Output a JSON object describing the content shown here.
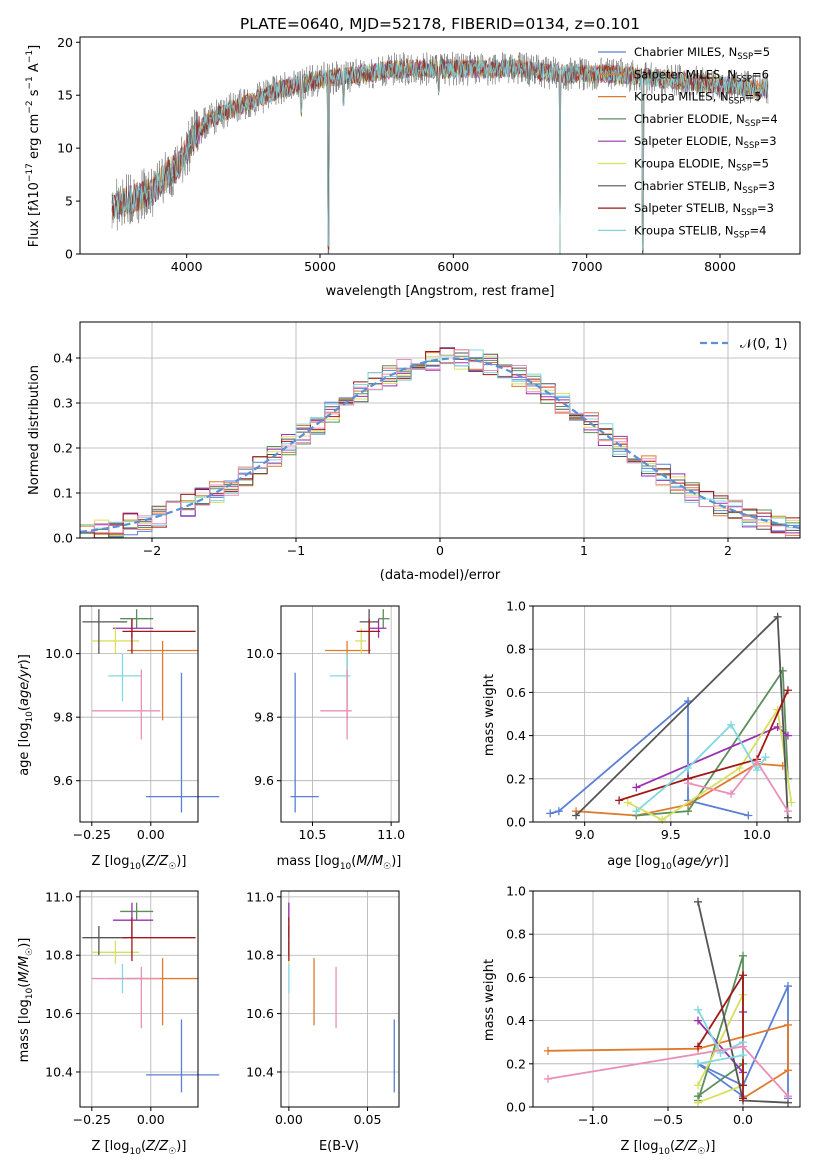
{
  "colors": {
    "grid": "#b0b0b0",
    "palette": [
      "#5b7fd6",
      "#e07a2e",
      "#b8b8b8",
      "#5a8f5a",
      "#9b30b0",
      "#d8e060",
      "#555555",
      "#a01818",
      "#80d8e0",
      "#e890b8"
    ]
  },
  "chart_data": [
    {
      "id": "spectrum",
      "type": "line",
      "title": "PLATE=0640, MJD=52178, FIBERID=0134, z=0.101",
      "xlabel": "wavelength [Angstrom, rest frame]",
      "ylabel": "Flux [fλ10⁻¹⁷ erg cm⁻² s⁻¹ A⁻¹]",
      "xlim": [
        3200,
        8600
      ],
      "ylim": [
        0,
        20.5
      ],
      "xticks": [
        4000,
        5000,
        6000,
        7000,
        8000
      ],
      "yticks": [
        0,
        5,
        10,
        15,
        20
      ],
      "legend": "top-right",
      "series": [
        {
          "name": "Chabrier MILES, N_SSP=5",
          "label_main": "Chabrier MILES, N",
          "label_sub": "SSP",
          "label_tail": "=5",
          "color": "#5b7fd6"
        },
        {
          "name": "Salpeter MILES, N_SSP=6",
          "label_main": "Salpeter MILES, N",
          "label_sub": "SSP",
          "label_tail": "=6",
          "color": "#e07a2e"
        },
        {
          "name": "Kroupa MILES, N_SSP=5",
          "label_main": "Kroupa MILES, N",
          "label_sub": "SSP",
          "label_tail": "=5",
          "color": "#e07a2e"
        },
        {
          "name": "Chabrier ELODIE, N_SSP=4",
          "label_main": "Chabrier ELODIE, N",
          "label_sub": "SSP",
          "label_tail": "=4",
          "color": "#5a8f5a"
        },
        {
          "name": "Salpeter ELODIE, N_SSP=3",
          "label_main": "Salpeter ELODIE, N",
          "label_sub": "SSP",
          "label_tail": "=3",
          "color": "#9b30b0"
        },
        {
          "name": "Kroupa ELODIE, N_SSP=5",
          "label_main": "Kroupa ELODIE, N",
          "label_sub": "SSP",
          "label_tail": "=5",
          "color": "#d8e060"
        },
        {
          "name": "Chabrier STELIB, N_SSP=3",
          "label_main": "Chabrier STELIB, N",
          "label_sub": "SSP",
          "label_tail": "=3",
          "color": "#555555"
        },
        {
          "name": "Salpeter STELIB, N_SSP=3",
          "label_main": "Salpeter STELIB, N",
          "label_sub": "SSP",
          "label_tail": "=3",
          "color": "#a01818"
        },
        {
          "name": "Kroupa STELIB, N_SSP=4",
          "label_main": "Kroupa STELIB, N",
          "label_sub": "SSP",
          "label_tail": "=4",
          "color": "#80d8e0"
        }
      ],
      "continuum_points": [
        [
          3450,
          4.5
        ],
        [
          3550,
          5
        ],
        [
          3650,
          5.5
        ],
        [
          3750,
          6
        ],
        [
          3850,
          7.5
        ],
        [
          3950,
          8.5
        ],
        [
          4050,
          11
        ],
        [
          4150,
          12.5
        ],
        [
          4300,
          13.5
        ],
        [
          4500,
          14.5
        ],
        [
          4700,
          15.5
        ],
        [
          5000,
          16.5
        ],
        [
          5300,
          17
        ],
        [
          5600,
          17.5
        ],
        [
          5900,
          17.5
        ],
        [
          6200,
          17.5
        ],
        [
          6500,
          17.5
        ],
        [
          6800,
          17
        ],
        [
          7200,
          17
        ],
        [
          7600,
          16.5
        ],
        [
          8000,
          16
        ],
        [
          8350,
          15.5
        ]
      ],
      "absorption_features": [
        [
          3933,
          7.5
        ],
        [
          4861,
          13
        ],
        [
          5063,
          0
        ],
        [
          5175,
          14
        ],
        [
          5890,
          15
        ],
        [
          6563,
          16
        ],
        [
          6800,
          0
        ],
        [
          7420,
          0
        ]
      ]
    },
    {
      "id": "residuals",
      "type": "histogram",
      "xlabel": "(data-model)/error",
      "ylabel": "Normed distribution",
      "xlim": [
        -2.5,
        2.5
      ],
      "ylim": [
        0,
        0.48
      ],
      "xticks": [
        -2,
        -1,
        0,
        1,
        2
      ],
      "yticks": [
        0.0,
        0.1,
        0.2,
        0.3,
        0.4
      ],
      "bin_width": 0.1,
      "legend": "top-right",
      "reference": {
        "label": "𝒩(0, 1)",
        "mean": 0.1,
        "sigma": 1.0,
        "color": "#5b8fd6"
      }
    },
    {
      "id": "age-vs-Z",
      "type": "errorbar",
      "xlabel_main": "Z [log",
      "xlabel_sub": "10",
      "xlabel_tail": "(Z/Z",
      "xlabel_end": ")]",
      "ylabel": "age  [log10(age/yr)]",
      "xlim": [
        -0.3,
        0.2
      ],
      "ylim": [
        9.47,
        10.15
      ],
      "xticks": [
        -0.25,
        0.0
      ],
      "yticks": [
        9.6,
        9.8,
        10.0
      ]
    },
    {
      "id": "age-vs-mass",
      "type": "errorbar",
      "xlabel": "mass [log10(M/M☉)]",
      "xlim": [
        10.3,
        11.05
      ],
      "ylim": [
        9.47,
        10.15
      ],
      "xticks": [
        10.5,
        11.0
      ],
      "yticks": [
        9.6,
        9.8,
        10.0
      ]
    },
    {
      "id": "weight-vs-age",
      "type": "line",
      "xlabel": "age  [log10(age/yr)]",
      "ylabel": "mass weight",
      "xlim": [
        8.7,
        10.25
      ],
      "ylim": [
        0,
        1.0
      ],
      "xticks": [
        9.0,
        9.5,
        10.0
      ],
      "yticks": [
        0.0,
        0.2,
        0.4,
        0.6,
        0.8,
        1.0
      ]
    },
    {
      "id": "mass-vs-Z",
      "type": "errorbar",
      "ylabel": "mass [log10(M/M☉)]",
      "xlim": [
        -0.3,
        0.2
      ],
      "ylim": [
        10.28,
        11.02
      ],
      "xticks": [
        -0.25,
        0.0
      ],
      "yticks": [
        10.4,
        10.6,
        10.8,
        11.0
      ]
    },
    {
      "id": "mass-vs-ebv",
      "type": "errorbar",
      "xlabel": "E(B-V)",
      "xlim": [
        -0.005,
        0.07
      ],
      "ylim": [
        10.28,
        11.02
      ],
      "xticks": [
        0.0,
        0.05
      ],
      "xticklabels": [
        "0.00",
        "0.05"
      ],
      "yticks": [
        10.4,
        10.6,
        10.8,
        11.0
      ]
    },
    {
      "id": "weight-vs-Z",
      "type": "line",
      "xlabel": "Z [log10(Z/Z☉)]",
      "ylabel": "mass weight",
      "xlim": [
        -1.4,
        0.38
      ],
      "ylim": [
        0,
        1.0
      ],
      "xticks": [
        -1.0,
        -0.5,
        0.0
      ],
      "yticks": [
        0.0,
        0.2,
        0.4,
        0.6,
        0.8,
        1.0
      ]
    }
  ],
  "fits": [
    {
      "color": "#5b7fd6",
      "Z": 0.13,
      "Zlo": -0.02,
      "Zhi": 0.29,
      "age": 9.55,
      "ageLo": 9.5,
      "ageHi": 9.94,
      "mass": 10.39,
      "massLo": 10.33,
      "massHi": 10.58,
      "massErrL": 10.36,
      "massErrR": 10.54,
      "ebv": 0.067,
      "age_w": [
        [
          8.8,
          0.04
        ],
        [
          8.85,
          0.05
        ],
        [
          9.6,
          0.56
        ],
        [
          9.6,
          0.1
        ],
        [
          9.95,
          0.03
        ]
      ],
      "Z_w": [
        [
          0.3,
          0.04
        ],
        [
          0.3,
          0.56
        ],
        [
          0.0,
          0.1
        ],
        [
          -0.3,
          0.2
        ],
        [
          0.0,
          0.05
        ]
      ]
    },
    {
      "color": "#e07a2e",
      "Z": 0.05,
      "Zlo": -0.1,
      "Zhi": 0.2,
      "age": 10.01,
      "ageLo": 9.79,
      "ageHi": 10.04,
      "mass": 10.72,
      "massLo": 10.56,
      "massHi": 10.79,
      "massErrL": 10.58,
      "massErrR": 10.87,
      "ebv": 0.016,
      "age_w": [
        [
          8.95,
          0.05
        ],
        [
          9.3,
          0.03
        ],
        [
          9.6,
          0.08
        ],
        [
          10.0,
          0.27
        ],
        [
          10.15,
          0.26
        ]
      ],
      "Z_w": [
        [
          -1.3,
          0.26
        ],
        [
          -0.3,
          0.27
        ],
        [
          0.3,
          0.38
        ],
        [
          0.3,
          0.17
        ],
        [
          0.0,
          0.04
        ]
      ]
    },
    {
      "color": "#5a8f5a",
      "Z": -0.06,
      "Zlo": -0.13,
      "Zhi": 0.01,
      "age": 10.11,
      "ageLo": 10.08,
      "ageHi": 10.14,
      "mass": 10.95,
      "massLo": 10.92,
      "massHi": 10.98,
      "massErrL": 10.92,
      "massErrR": 10.99,
      "ebv": 0.0,
      "age_w": [
        [
          9.3,
          0.03
        ],
        [
          9.6,
          0.05
        ],
        [
          10.15,
          0.7
        ],
        [
          10.18,
          0.2
        ]
      ],
      "Z_w": [
        [
          -0.3,
          0.03
        ],
        [
          0.0,
          0.7
        ],
        [
          0.0,
          0.2
        ],
        [
          -0.3,
          0.05
        ]
      ]
    },
    {
      "color": "#9b30b0",
      "Z": -0.08,
      "Zlo": -0.16,
      "Zhi": 0.01,
      "age": 10.08,
      "ageLo": 10.05,
      "ageHi": 10.11,
      "mass": 10.92,
      "massLo": 10.86,
      "massHi": 10.98,
      "massErrL": 10.86,
      "massErrR": 10.97,
      "ebv": 0.0,
      "age_w": [
        [
          9.3,
          0.16
        ],
        [
          10.12,
          0.44
        ],
        [
          10.18,
          0.4
        ]
      ],
      "Z_w": [
        [
          -0.3,
          0.4
        ],
        [
          0.0,
          0.16
        ],
        [
          0.0,
          0.44
        ]
      ]
    },
    {
      "color": "#d8e060",
      "Z": -0.15,
      "Zlo": -0.25,
      "Zhi": -0.05,
      "age": 10.04,
      "ageLo": 10.0,
      "ageHi": 10.08,
      "mass": 10.81,
      "massLo": 10.77,
      "massHi": 10.85,
      "massErrL": 10.77,
      "massErrR": 10.84,
      "ebv": 0.0,
      "age_w": [
        [
          9.25,
          0.09
        ],
        [
          9.45,
          0.01
        ],
        [
          9.9,
          0.25
        ],
        [
          10.12,
          0.52
        ],
        [
          10.2,
          0.09
        ]
      ],
      "Z_w": [
        [
          -0.3,
          0.02
        ],
        [
          0.0,
          0.1
        ],
        [
          0.0,
          0.52
        ],
        [
          -0.3,
          0.1
        ]
      ]
    },
    {
      "color": "#555555",
      "Z": -0.22,
      "Zlo": -0.29,
      "Zhi": -0.1,
      "age": 10.1,
      "ageLo": 10.0,
      "ageHi": 10.14,
      "mass": 10.86,
      "massLo": 10.8,
      "massHi": 10.9,
      "massErrL": 10.8,
      "massErrR": 10.92,
      "ebv": 0.0,
      "age_w": [
        [
          8.95,
          0.03
        ],
        [
          10.12,
          0.95
        ],
        [
          10.18,
          0.02
        ]
      ],
      "Z_w": [
        [
          -0.3,
          0.95
        ],
        [
          0.0,
          0.03
        ],
        [
          0.3,
          0.02
        ]
      ]
    },
    {
      "color": "#a01818",
      "Z": -0.08,
      "Zlo": -0.12,
      "Zhi": 0.19,
      "age": 10.07,
      "ageLo": 10.0,
      "ageHi": 10.11,
      "mass": 10.86,
      "massLo": 10.78,
      "massHi": 10.93,
      "massErrL": 10.78,
      "massErrR": 10.93,
      "ebv": 0.0,
      "age_w": [
        [
          9.2,
          0.1
        ],
        [
          9.6,
          0.2
        ],
        [
          10.0,
          0.29
        ],
        [
          10.18,
          0.61
        ]
      ],
      "Z_w": [
        [
          -0.3,
          0.28
        ],
        [
          0.0,
          0.61
        ],
        [
          0.0,
          0.1
        ],
        [
          0.0,
          0.04
        ]
      ]
    },
    {
      "color": "#80d8e0",
      "Z": -0.12,
      "Zlo": -0.18,
      "Zhi": -0.04,
      "age": 9.93,
      "ageLo": 9.85,
      "ageHi": 10.0,
      "mass": 10.72,
      "massLo": 10.67,
      "massHi": 10.77,
      "massErrL": 10.61,
      "massErrR": 10.74,
      "ebv": 0.0,
      "age_w": [
        [
          9.3,
          0.05
        ],
        [
          9.6,
          0.25
        ],
        [
          9.85,
          0.45
        ],
        [
          10.0,
          0.24
        ],
        [
          10.05,
          0.3
        ]
      ],
      "Z_w": [
        [
          -0.3,
          0.45
        ],
        [
          -0.15,
          0.25
        ],
        [
          0.0,
          0.3
        ],
        [
          0.0,
          0.24
        ],
        [
          -0.3,
          0.2
        ]
      ]
    },
    {
      "color": "#e890b8",
      "Z": -0.04,
      "Zlo": -0.25,
      "Zhi": 0.04,
      "age": 9.82,
      "ageLo": 9.73,
      "ageHi": 9.95,
      "mass": 10.72,
      "massLo": 10.55,
      "massHi": 10.76,
      "massErrL": 10.55,
      "massErrR": 10.75,
      "ebv": 0.03,
      "age_w": [
        [
          9.6,
          0.18
        ],
        [
          9.85,
          0.13
        ],
        [
          10.0,
          0.28
        ],
        [
          10.18,
          0.05
        ]
      ],
      "Z_w": [
        [
          -1.3,
          0.13
        ],
        [
          0.0,
          0.28
        ],
        [
          0.3,
          0.05
        ]
      ]
    }
  ]
}
